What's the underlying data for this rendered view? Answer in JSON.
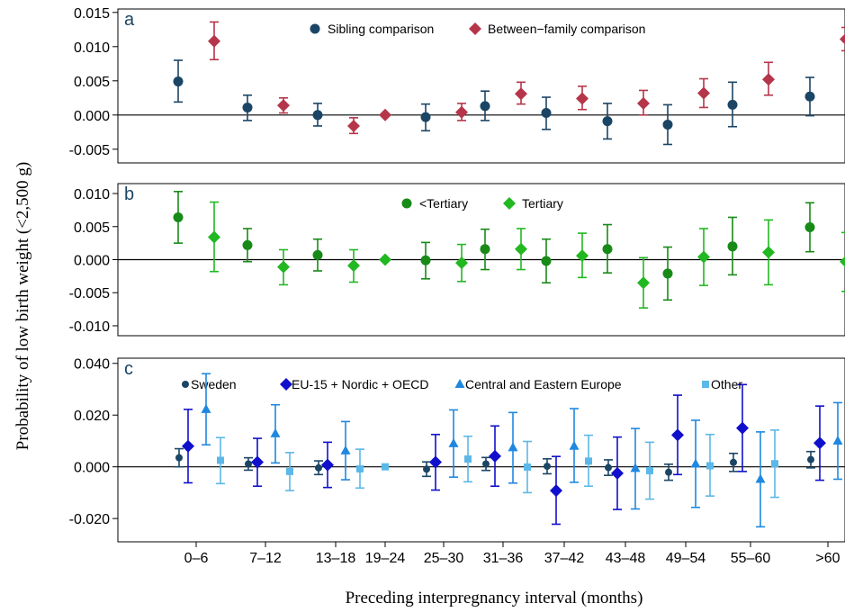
{
  "figure": {
    "ylabel": "Probability of low birth weight (<2,500 g)",
    "xlabel": "Preceding interpregnancy interval (months)"
  },
  "chart_data": {
    "type": "scatter",
    "categories": [
      "0–6",
      "7–12",
      "13–18",
      "19–24",
      "25–30",
      "31–36",
      "37–42",
      "43–48",
      "49–54",
      "55–60",
      ">60"
    ],
    "panels": [
      {
        "letter": "a",
        "ylim": [
          -0.007,
          0.0155
        ],
        "ticks": [
          0.015,
          0.01,
          0.005,
          0.0,
          -0.005
        ],
        "tick_labels": [
          "0.015",
          "0.010",
          "0.005",
          "0.000",
          "-0.005"
        ],
        "series": [
          {
            "name": "Sibling comparison",
            "color": "#1b4565",
            "marker": "circle",
            "values": [
              0.0049,
              0.0011,
              0.0,
              null,
              -0.0003,
              0.0013,
              0.0003,
              -0.0009,
              -0.0014,
              0.0015,
              0.0027
            ],
            "lower": [
              0.0019,
              -0.0008,
              -0.0016,
              null,
              -0.0023,
              -0.0008,
              -0.0021,
              -0.0035,
              -0.0043,
              -0.0017,
              -0.0001
            ],
            "upper": [
              0.008,
              0.0029,
              0.0017,
              null,
              0.0016,
              0.0035,
              0.0026,
              0.0017,
              0.0015,
              0.0048,
              0.0055
            ]
          },
          {
            "name": "Between−family comparison",
            "color": "#b5364a",
            "marker": "diamond",
            "values": [
              0.0108,
              0.0014,
              -0.0016,
              0.0,
              0.0004,
              0.0031,
              0.0024,
              0.0017,
              0.0032,
              0.0052,
              0.0111
            ],
            "lower": [
              0.0081,
              0.0003,
              -0.0027,
              null,
              -0.0008,
              0.0016,
              0.0008,
              0.0,
              0.0011,
              0.0029,
              0.0094
            ],
            "upper": [
              0.0136,
              0.0025,
              -0.0004,
              null,
              0.0017,
              0.0048,
              0.0042,
              0.0036,
              0.0053,
              0.0077,
              0.0128
            ]
          }
        ]
      },
      {
        "letter": "b",
        "ylim": [
          -0.0115,
          0.0115
        ],
        "ticks": [
          0.01,
          0.005,
          0.0,
          -0.005,
          -0.01
        ],
        "tick_labels": [
          "0.010",
          "0.005",
          "0.000",
          "-0.005",
          "-0.010"
        ],
        "series": [
          {
            "name": "<Tertiary",
            "color": "#178a17",
            "marker": "circle",
            "values": [
              0.0064,
              0.0022,
              0.0007,
              null,
              -0.0001,
              0.0016,
              -0.0002,
              0.0016,
              -0.0021,
              0.002,
              0.0049
            ],
            "lower": [
              0.0025,
              -0.0003,
              -0.0017,
              null,
              -0.0029,
              -0.0015,
              -0.0035,
              -0.002,
              -0.0061,
              -0.0023,
              0.0012
            ],
            "upper": [
              0.0103,
              0.0047,
              0.0031,
              null,
              0.0026,
              0.0046,
              0.0031,
              0.0053,
              0.0019,
              0.0064,
              0.0086
            ]
          },
          {
            "name": "Tertiary",
            "color": "#22b822",
            "marker": "diamond",
            "values": [
              0.0034,
              -0.0011,
              -0.0009,
              0.0,
              -0.0005,
              0.0016,
              0.0006,
              -0.0035,
              0.0004,
              0.0011,
              -0.0003
            ],
            "lower": [
              -0.0018,
              -0.0038,
              -0.0034,
              null,
              -0.0033,
              -0.0015,
              -0.0027,
              -0.0073,
              -0.0039,
              -0.0038,
              -0.0048
            ],
            "upper": [
              0.0087,
              0.0015,
              0.0015,
              null,
              0.0023,
              0.0047,
              0.004,
              0.0003,
              0.0047,
              0.006,
              0.0041
            ]
          }
        ]
      },
      {
        "letter": "c",
        "ylim": [
          -0.029,
          0.042
        ],
        "ticks": [
          0.04,
          0.02,
          0.0,
          -0.02
        ],
        "tick_labels": [
          "0.040",
          "0.020",
          "0.000",
          "-0.020"
        ],
        "series": [
          {
            "name": "Sweden",
            "color": "#1b4565",
            "marker": "smallcircle",
            "values": [
              0.0035,
              0.0011,
              -0.0004,
              null,
              -0.0009,
              0.0011,
              0.0002,
              -0.0003,
              -0.0021,
              0.0017,
              0.0028
            ],
            "lower": [
              0.0,
              -0.0013,
              -0.003,
              null,
              -0.0037,
              -0.0014,
              -0.0027,
              -0.0033,
              -0.0052,
              -0.0018,
              -0.0004
            ],
            "upper": [
              0.007,
              0.0035,
              0.0023,
              null,
              0.0019,
              0.0036,
              0.0031,
              0.0027,
              0.001,
              0.0052,
              0.0059
            ]
          },
          {
            "name": "EU-15 + Nordic + OECD",
            "color": "#1010cc",
            "marker": "diamond",
            "values": [
              0.008,
              0.0018,
              0.0007,
              null,
              0.0018,
              0.0041,
              -0.0092,
              -0.0025,
              0.0123,
              0.015,
              0.0092
            ],
            "lower": [
              -0.0062,
              -0.0075,
              -0.008,
              null,
              -0.009,
              -0.0075,
              -0.0222,
              -0.0165,
              -0.003,
              -0.0018,
              -0.0052
            ],
            "upper": [
              0.0222,
              0.011,
              0.0095,
              null,
              0.0125,
              0.0158,
              0.004,
              0.0115,
              0.0277,
              0.0318,
              0.0235
            ]
          },
          {
            "name": "Central and Eastern Europe",
            "color": "#1e88e0",
            "marker": "triangle",
            "values": [
              0.0222,
              0.0128,
              0.0062,
              null,
              0.009,
              0.0074,
              0.008,
              -0.0006,
              0.0011,
              -0.0048,
              0.01
            ],
            "lower": [
              0.0085,
              0.0015,
              -0.005,
              null,
              -0.004,
              -0.0063,
              -0.006,
              -0.0163,
              -0.0157,
              -0.0232,
              -0.0048
            ],
            "upper": [
              0.036,
              0.024,
              0.0175,
              null,
              0.022,
              0.021,
              0.0225,
              0.0148,
              0.018,
              0.0135,
              0.0248
            ]
          },
          {
            "name": "Other",
            "color": "#5bb8e8",
            "marker": "square",
            "values": [
              0.0025,
              -0.0018,
              -0.0008,
              0.0,
              0.003,
              -0.0001,
              0.0022,
              -0.0015,
              0.0004,
              0.0012,
              0.001
            ],
            "lower": [
              -0.0065,
              -0.0092,
              -0.0082,
              null,
              -0.0058,
              -0.01,
              -0.0075,
              -0.0125,
              -0.0113,
              -0.0118,
              -0.01
            ],
            "upper": [
              0.0113,
              0.0055,
              0.0068,
              null,
              0.0118,
              0.0098,
              0.0122,
              0.0095,
              0.0125,
              0.0142,
              0.0122
            ]
          }
        ]
      }
    ]
  }
}
